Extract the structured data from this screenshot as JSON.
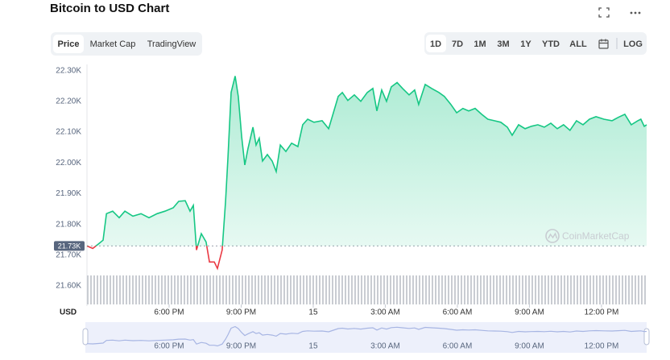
{
  "chart_data": {
    "type": "line",
    "title": "Bitcoin to USD Chart",
    "tabs": [
      "Price",
      "Market Cap",
      "TradingView"
    ],
    "ranges": [
      "1D",
      "7D",
      "1M",
      "3M",
      "1Y",
      "YTD",
      "ALL",
      "LOG"
    ],
    "y_label": "USD",
    "watermark": "CoinMarketCap",
    "x": [
      14.58,
      14.82,
      15.05,
      15.25,
      15.39,
      15.65,
      15.92,
      16.16,
      16.49,
      16.83,
      17.16,
      17.5,
      17.83,
      18.17,
      18.4,
      18.67,
      18.87,
      19.01,
      19.14,
      19.34,
      19.54,
      19.68,
      19.88,
      20.01,
      20.21,
      20.35,
      20.45,
      20.58,
      20.75,
      20.88,
      21.02,
      21.15,
      21.28,
      21.49,
      21.62,
      21.75,
      21.89,
      22.09,
      22.29,
      22.46,
      22.63,
      22.86,
      23.1,
      23.36,
      23.56,
      23.77,
      24.03,
      24.37,
      24.64,
      24.84,
      25.04,
      25.21,
      25.44,
      25.71,
      25.98,
      26.25,
      26.48,
      26.65,
      26.85,
      27.05,
      27.25,
      27.49,
      27.72,
      27.99,
      28.22,
      28.39,
      28.66,
      28.93,
      29.23,
      29.46,
      29.73,
      29.97,
      30.23,
      30.47,
      30.74,
      31.01,
      31.27,
      31.54,
      31.81,
      32.08,
      32.28,
      32.55,
      32.82,
      33.08,
      33.35,
      33.62,
      33.89,
      34.16,
      34.42,
      34.69,
      34.96,
      35.23,
      35.5,
      35.77,
      36.1,
      36.44,
      36.7,
      36.97,
      37.24,
      37.51,
      37.64,
      37.78,
      37.88
    ],
    "series": [
      {
        "name": "Price",
        "color": "#16c784",
        "below_color": "#ea3943",
        "values": [
          21730,
          21722,
          21736,
          21749,
          21835,
          21843,
          21822,
          21843,
          21827,
          21835,
          21822,
          21835,
          21843,
          21854,
          21875,
          21877,
          21843,
          21862,
          21717,
          21770,
          21743,
          21678,
          21678,
          21657,
          21717,
          21875,
          22019,
          22229,
          22282,
          22216,
          22085,
          21993,
          22045,
          22116,
          22058,
          22080,
          22006,
          22027,
          22006,
          21972,
          22058,
          22037,
          22064,
          22053,
          22124,
          22142,
          22132,
          22137,
          22111,
          22163,
          22216,
          22229,
          22203,
          22221,
          22200,
          22229,
          22242,
          22169,
          22237,
          22200,
          22247,
          22261,
          22242,
          22221,
          22237,
          22190,
          22255,
          22242,
          22229,
          22216,
          22190,
          22163,
          22177,
          22169,
          22177,
          22158,
          22142,
          22137,
          22132,
          22116,
          22090,
          22124,
          22111,
          22119,
          22124,
          22116,
          22129,
          22111,
          22124,
          22106,
          22137,
          22124,
          22142,
          22150,
          22142,
          22137,
          22148,
          22158,
          22124,
          22137,
          22142,
          22119,
          22124
        ]
      }
    ],
    "reference": {
      "value": 21730,
      "label": "21.73K"
    },
    "xlim": [
      14.58,
      37.88
    ],
    "xticks": [
      {
        "value": 18,
        "label": "6:00 PM"
      },
      {
        "value": 21,
        "label": "9:00 PM"
      },
      {
        "value": 24,
        "label": "15"
      },
      {
        "value": 27,
        "label": "3:00 AM"
      },
      {
        "value": 30,
        "label": "6:00 AM"
      },
      {
        "value": 33,
        "label": "9:00 AM"
      },
      {
        "value": 36,
        "label": "12:00 PM"
      }
    ],
    "ylim": [
      21540,
      22320
    ],
    "yticks": [
      {
        "value": 21600,
        "label": "21.60K"
      },
      {
        "value": 21700,
        "label": "21.70K"
      },
      {
        "value": 21800,
        "label": "21.80K"
      },
      {
        "value": 21900,
        "label": "21.90K"
      },
      {
        "value": 22000,
        "label": "22.00K"
      },
      {
        "value": 22100,
        "label": "22.10K"
      },
      {
        "value": 22200,
        "label": "22.20K"
      },
      {
        "value": 22300,
        "label": "22.30K"
      }
    ],
    "grid": false
  }
}
